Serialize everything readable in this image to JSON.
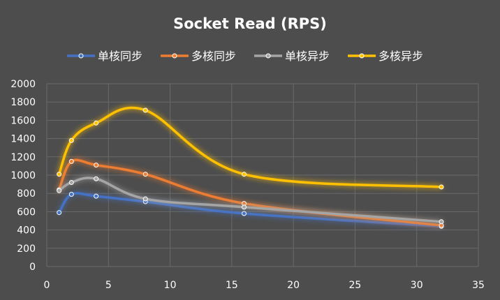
{
  "chart_data": {
    "type": "scatter",
    "title": "Socket Read (RPS)",
    "xlabel": "",
    "ylabel": "",
    "xlim": [
      0,
      35
    ],
    "ylim": [
      0,
      2000
    ],
    "x_ticks": [
      0,
      5,
      10,
      15,
      20,
      25,
      30,
      35
    ],
    "y_ticks": [
      0,
      200,
      400,
      600,
      800,
      1000,
      1200,
      1400,
      1600,
      1800,
      2000
    ],
    "grid": true,
    "legend_position": "top",
    "smooth_lines": true,
    "series": [
      {
        "name": "单核同步",
        "color": "#4472c4",
        "x": [
          1,
          2,
          4,
          8,
          16,
          32
        ],
        "y": [
          590,
          790,
          770,
          710,
          580,
          440
        ]
      },
      {
        "name": "多核同步",
        "color": "#ed7d31",
        "x": [
          1,
          2,
          4,
          8,
          16,
          32
        ],
        "y": [
          840,
          1150,
          1110,
          1010,
          690,
          450
        ]
      },
      {
        "name": "单核异步",
        "color": "#a5a5a5",
        "x": [
          1,
          2,
          4,
          8,
          16,
          32
        ],
        "y": [
          830,
          920,
          960,
          740,
          650,
          490
        ]
      },
      {
        "name": "多核异步",
        "color": "#ffc000",
        "x": [
          1,
          2,
          4,
          8,
          16,
          32
        ],
        "y": [
          1010,
          1380,
          1570,
          1710,
          1010,
          870
        ]
      }
    ]
  }
}
